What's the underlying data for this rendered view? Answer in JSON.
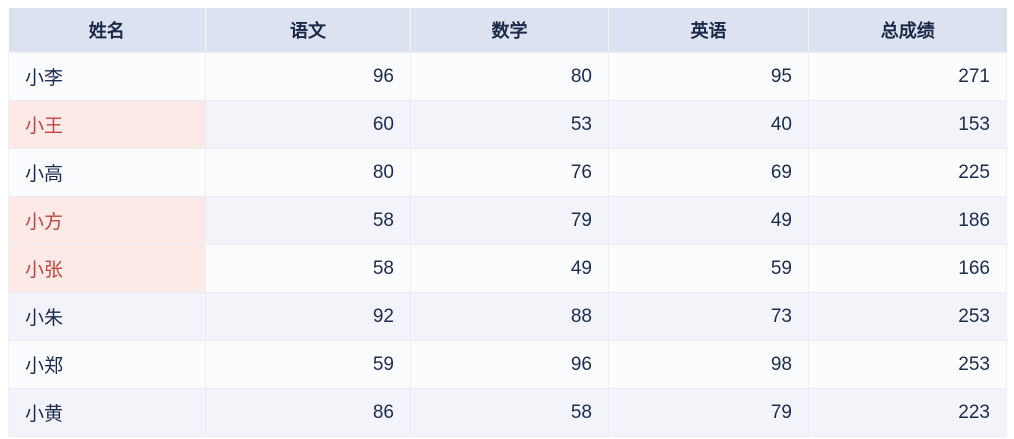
{
  "chart_data": {
    "type": "table",
    "columns": [
      "姓名",
      "语文",
      "数学",
      "英语",
      "总成绩"
    ],
    "rows": [
      {
        "name": "小李",
        "scores": [
          96,
          80,
          95,
          271
        ],
        "highlighted": false
      },
      {
        "name": "小王",
        "scores": [
          60,
          53,
          40,
          153
        ],
        "highlighted": true
      },
      {
        "name": "小高",
        "scores": [
          80,
          76,
          69,
          225
        ],
        "highlighted": false
      },
      {
        "name": "小方",
        "scores": [
          58,
          79,
          49,
          186
        ],
        "highlighted": true
      },
      {
        "name": "小张",
        "scores": [
          58,
          49,
          59,
          166
        ],
        "highlighted": true
      },
      {
        "name": "小朱",
        "scores": [
          92,
          88,
          73,
          253
        ],
        "highlighted": false
      },
      {
        "name": "小郑",
        "scores": [
          59,
          96,
          98,
          253
        ],
        "highlighted": false
      },
      {
        "name": "小黄",
        "scores": [
          86,
          58,
          79,
          223
        ],
        "highlighted": false
      }
    ],
    "highlighted_names": [
      "小王",
      "小方",
      "小张"
    ]
  },
  "colors": {
    "header_bg": "#dce2f0",
    "header_text": "#1d2849",
    "body_text": "#1c2b4e",
    "row_odd_bg": "#fbfcfe",
    "row_even_bg": "#f2f4f9",
    "highlight_bg": "#fdeae7",
    "highlight_text": "#bf4440",
    "border": "#e9ecf4"
  }
}
